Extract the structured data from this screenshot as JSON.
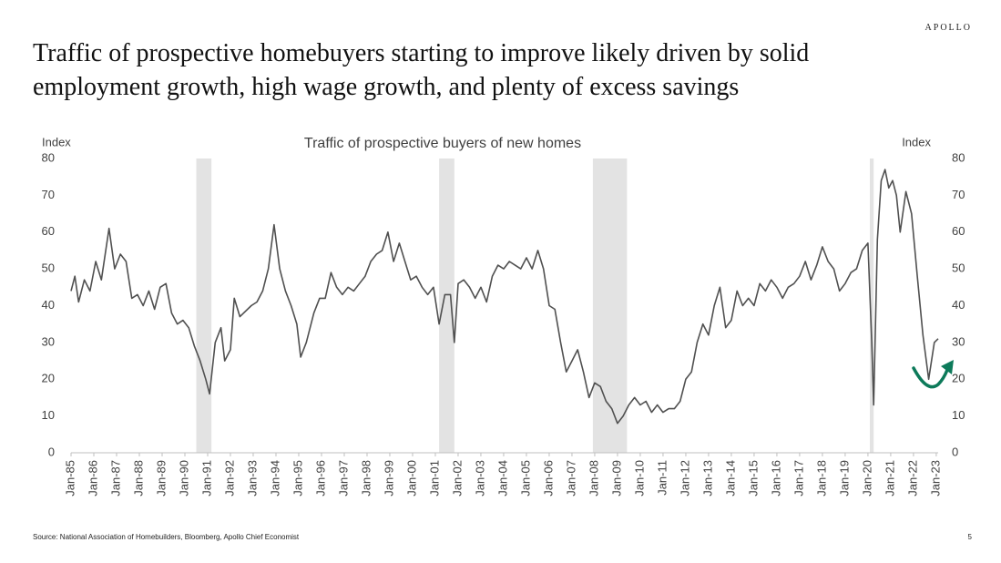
{
  "brand": "APOLLO",
  "title": "Traffic of prospective homebuyers starting to improve likely driven by solid employment growth, high wage growth, and plenty of excess savings",
  "source": "Source: National Association of Homebuilders, Bloomberg, Apollo Chief Economist",
  "page_number": "5",
  "chart_data": {
    "type": "line",
    "title": "Traffic of prospective buyers of new homes",
    "y_label": "Index",
    "y2_label": "Index",
    "color": "#505050",
    "recession_color": "#e3e3e3",
    "recessions": [
      [
        "1990-07",
        "1991-03"
      ],
      [
        "2001-03",
        "2001-11"
      ],
      [
        "2007-12",
        "2009-06"
      ],
      [
        "2020-02",
        "2020-04"
      ]
    ],
    "x": [
      "1985-01",
      "1985-03",
      "1985-05",
      "1985-08",
      "1985-11",
      "1986-02",
      "1986-05",
      "1986-09",
      "1986-12",
      "1987-03",
      "1987-06",
      "1987-09",
      "1987-12",
      "1988-03",
      "1988-06",
      "1988-09",
      "1988-12",
      "1989-03",
      "1989-06",
      "1989-09",
      "1989-12",
      "1990-03",
      "1990-06",
      "1990-09",
      "1990-12",
      "1991-02",
      "1991-05",
      "1991-08",
      "1991-10",
      "1992-01",
      "1992-03",
      "1992-06",
      "1992-12",
      "1993-03",
      "1993-06",
      "1993-09",
      "1993-12",
      "1994-03",
      "1994-06",
      "1994-09",
      "1994-12",
      "1995-02",
      "1995-05",
      "1995-09",
      "1995-12",
      "1996-03",
      "1996-06",
      "1996-09",
      "1996-12",
      "1997-03",
      "1997-06",
      "1997-09",
      "1997-12",
      "1998-03",
      "1998-06",
      "1998-09",
      "1998-12",
      "1999-03",
      "1999-06",
      "1999-09",
      "1999-12",
      "2000-03",
      "2000-06",
      "2000-09",
      "2000-12",
      "2001-03",
      "2001-06",
      "2001-09",
      "2001-11",
      "2002-01",
      "2002-04",
      "2002-07",
      "2002-10",
      "2003-01",
      "2003-04",
      "2003-07",
      "2003-10",
      "2004-01",
      "2004-04",
      "2004-07",
      "2004-10",
      "2005-01",
      "2005-04",
      "2005-07",
      "2005-10",
      "2006-01",
      "2006-04",
      "2006-07",
      "2006-10",
      "2007-01",
      "2007-04",
      "2007-07",
      "2007-10",
      "2008-01",
      "2008-04",
      "2008-07",
      "2008-10",
      "2009-01",
      "2009-04",
      "2009-07",
      "2009-10",
      "2010-01",
      "2010-04",
      "2010-07",
      "2010-10",
      "2011-01",
      "2011-04",
      "2011-07",
      "2011-10",
      "2012-01",
      "2012-04",
      "2012-07",
      "2012-10",
      "2013-01",
      "2013-04",
      "2013-07",
      "2013-10",
      "2014-01",
      "2014-04",
      "2014-07",
      "2014-10",
      "2015-01",
      "2015-04",
      "2015-07",
      "2015-10",
      "2016-01",
      "2016-04",
      "2016-07",
      "2016-10",
      "2017-01",
      "2017-04",
      "2017-07",
      "2017-10",
      "2018-01",
      "2018-04",
      "2018-07",
      "2018-10",
      "2019-01",
      "2019-04",
      "2019-07",
      "2019-10",
      "2020-01",
      "2020-03",
      "2020-04",
      "2020-06",
      "2020-08",
      "2020-10",
      "2020-12",
      "2021-02",
      "2021-04",
      "2021-06",
      "2021-09",
      "2021-12",
      "2022-03",
      "2022-06",
      "2022-09",
      "2022-12",
      "2023-02"
    ],
    "values": [
      44,
      48,
      41,
      47,
      44,
      52,
      47,
      61,
      50,
      54,
      52,
      42,
      43,
      40,
      44,
      39,
      45,
      46,
      38,
      35,
      36,
      34,
      29,
      25,
      20,
      16,
      30,
      34,
      25,
      28,
      42,
      37,
      40,
      41,
      44,
      50,
      62,
      50,
      44,
      40,
      35,
      26,
      30,
      38,
      42,
      42,
      49,
      45,
      43,
      45,
      44,
      46,
      48,
      52,
      54,
      55,
      60,
      52,
      57,
      52,
      47,
      48,
      45,
      43,
      45,
      35,
      43,
      43,
      30,
      46,
      47,
      45,
      42,
      45,
      41,
      48,
      51,
      50,
      52,
      51,
      50,
      53,
      50,
      55,
      50,
      40,
      39,
      30,
      22,
      25,
      28,
      22,
      15,
      19,
      18,
      14,
      12,
      8,
      10,
      13,
      15,
      13,
      14,
      11,
      13,
      11,
      12,
      12,
      14,
      20,
      22,
      30,
      35,
      32,
      40,
      45,
      34,
      36,
      44,
      40,
      42,
      40,
      46,
      44,
      47,
      45,
      42,
      45,
      46,
      48,
      52,
      47,
      51,
      56,
      52,
      50,
      44,
      46,
      49,
      50,
      55,
      57,
      30,
      13,
      58,
      74,
      77,
      72,
      74,
      70,
      60,
      71,
      65,
      48,
      32,
      20,
      30,
      31
    ],
    "xlim": [
      "1985-01",
      "2023-02"
    ],
    "xticks": [
      {
        "value": "1985-01",
        "label": "Jan-85"
      },
      {
        "value": "1986-01",
        "label": "Jan-86"
      },
      {
        "value": "1987-01",
        "label": "Jan-87"
      },
      {
        "value": "1988-01",
        "label": "Jan-88"
      },
      {
        "value": "1989-01",
        "label": "Jan-89"
      },
      {
        "value": "1990-01",
        "label": "Jan-90"
      },
      {
        "value": "1991-01",
        "label": "Jan-91"
      },
      {
        "value": "1992-01",
        "label": "Jan-92"
      },
      {
        "value": "1993-01",
        "label": "Jan-93"
      },
      {
        "value": "1994-01",
        "label": "Jan-94"
      },
      {
        "value": "1995-01",
        "label": "Jan-95"
      },
      {
        "value": "1996-01",
        "label": "Jan-96"
      },
      {
        "value": "1997-01",
        "label": "Jan-97"
      },
      {
        "value": "1998-01",
        "label": "Jan-98"
      },
      {
        "value": "1999-01",
        "label": "Jan-99"
      },
      {
        "value": "2000-01",
        "label": "Jan-00"
      },
      {
        "value": "2001-01",
        "label": "Jan-01"
      },
      {
        "value": "2002-01",
        "label": "Jan-02"
      },
      {
        "value": "2003-01",
        "label": "Jan-03"
      },
      {
        "value": "2004-01",
        "label": "Jan-04"
      },
      {
        "value": "2005-01",
        "label": "Jan-05"
      },
      {
        "value": "2006-01",
        "label": "Jan-06"
      },
      {
        "value": "2007-01",
        "label": "Jan-07"
      },
      {
        "value": "2008-01",
        "label": "Jan-08"
      },
      {
        "value": "2009-01",
        "label": "Jan-09"
      },
      {
        "value": "2010-01",
        "label": "Jan-10"
      },
      {
        "value": "2011-01",
        "label": "Jan-11"
      },
      {
        "value": "2012-01",
        "label": "Jan-12"
      },
      {
        "value": "2013-01",
        "label": "Jan-13"
      },
      {
        "value": "2014-01",
        "label": "Jan-14"
      },
      {
        "value": "2015-01",
        "label": "Jan-15"
      },
      {
        "value": "2016-01",
        "label": "Jan-16"
      },
      {
        "value": "2017-01",
        "label": "Jan-17"
      },
      {
        "value": "2018-01",
        "label": "Jan-18"
      },
      {
        "value": "2019-01",
        "label": "Jan-19"
      },
      {
        "value": "2020-01",
        "label": "Jan-20"
      },
      {
        "value": "2021-01",
        "label": "Jan-21"
      },
      {
        "value": "2022-01",
        "label": "Jan-22"
      },
      {
        "value": "2023-01",
        "label": "Jan-23"
      }
    ],
    "ylim": [
      0,
      80
    ],
    "yticks": [
      0,
      10,
      20,
      30,
      40,
      50,
      60,
      70,
      80
    ],
    "y2lim": [
      0,
      80
    ],
    "y2ticks": [
      0,
      10,
      20,
      30,
      40,
      50,
      60,
      70,
      80
    ],
    "grid": false
  }
}
